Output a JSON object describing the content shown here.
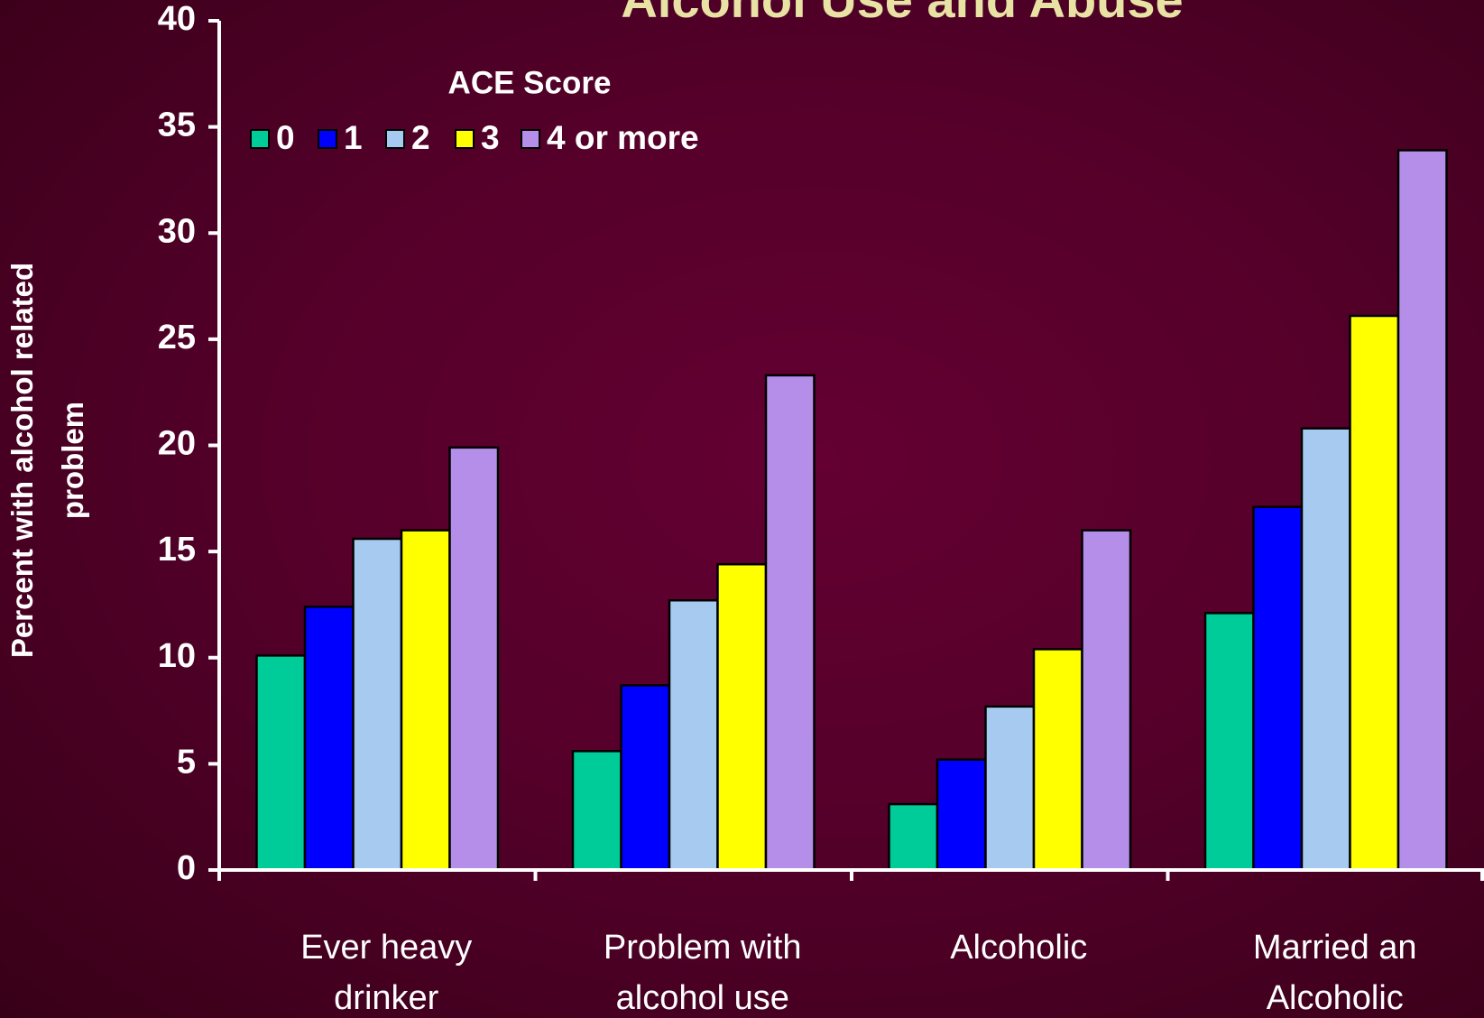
{
  "chart_data": {
    "type": "bar",
    "title": "Alcohol Use and Abuse",
    "y_label": "Percent with alcohol related\nproblem",
    "legend_title": "ACE Score",
    "categories": [
      "Ever heavy\ndrinker",
      "Problem with\nalcohol use",
      "Alcoholic",
      "Married an\nAlcoholic"
    ],
    "series": [
      {
        "name": "0",
        "color": "#00cc99",
        "values": [
          10.1,
          5.6,
          3.1,
          12.1
        ]
      },
      {
        "name": "1",
        "color": "#0000ff",
        "values": [
          12.4,
          8.7,
          5.2,
          17.1
        ]
      },
      {
        "name": "2",
        "color": "#a6caf0",
        "values": [
          15.6,
          12.7,
          7.7,
          20.8
        ]
      },
      {
        "name": "3",
        "color": "#ffff00",
        "values": [
          16.0,
          14.4,
          10.4,
          26.1
        ]
      },
      {
        "name": "4 or more",
        "color": "#b48ee8",
        "values": [
          19.9,
          23.3,
          16.0,
          33.9
        ]
      }
    ],
    "ylim": [
      0,
      40
    ],
    "yticks": [
      0,
      5,
      10,
      15,
      20,
      25,
      30,
      35,
      40
    ],
    "grid": false
  }
}
